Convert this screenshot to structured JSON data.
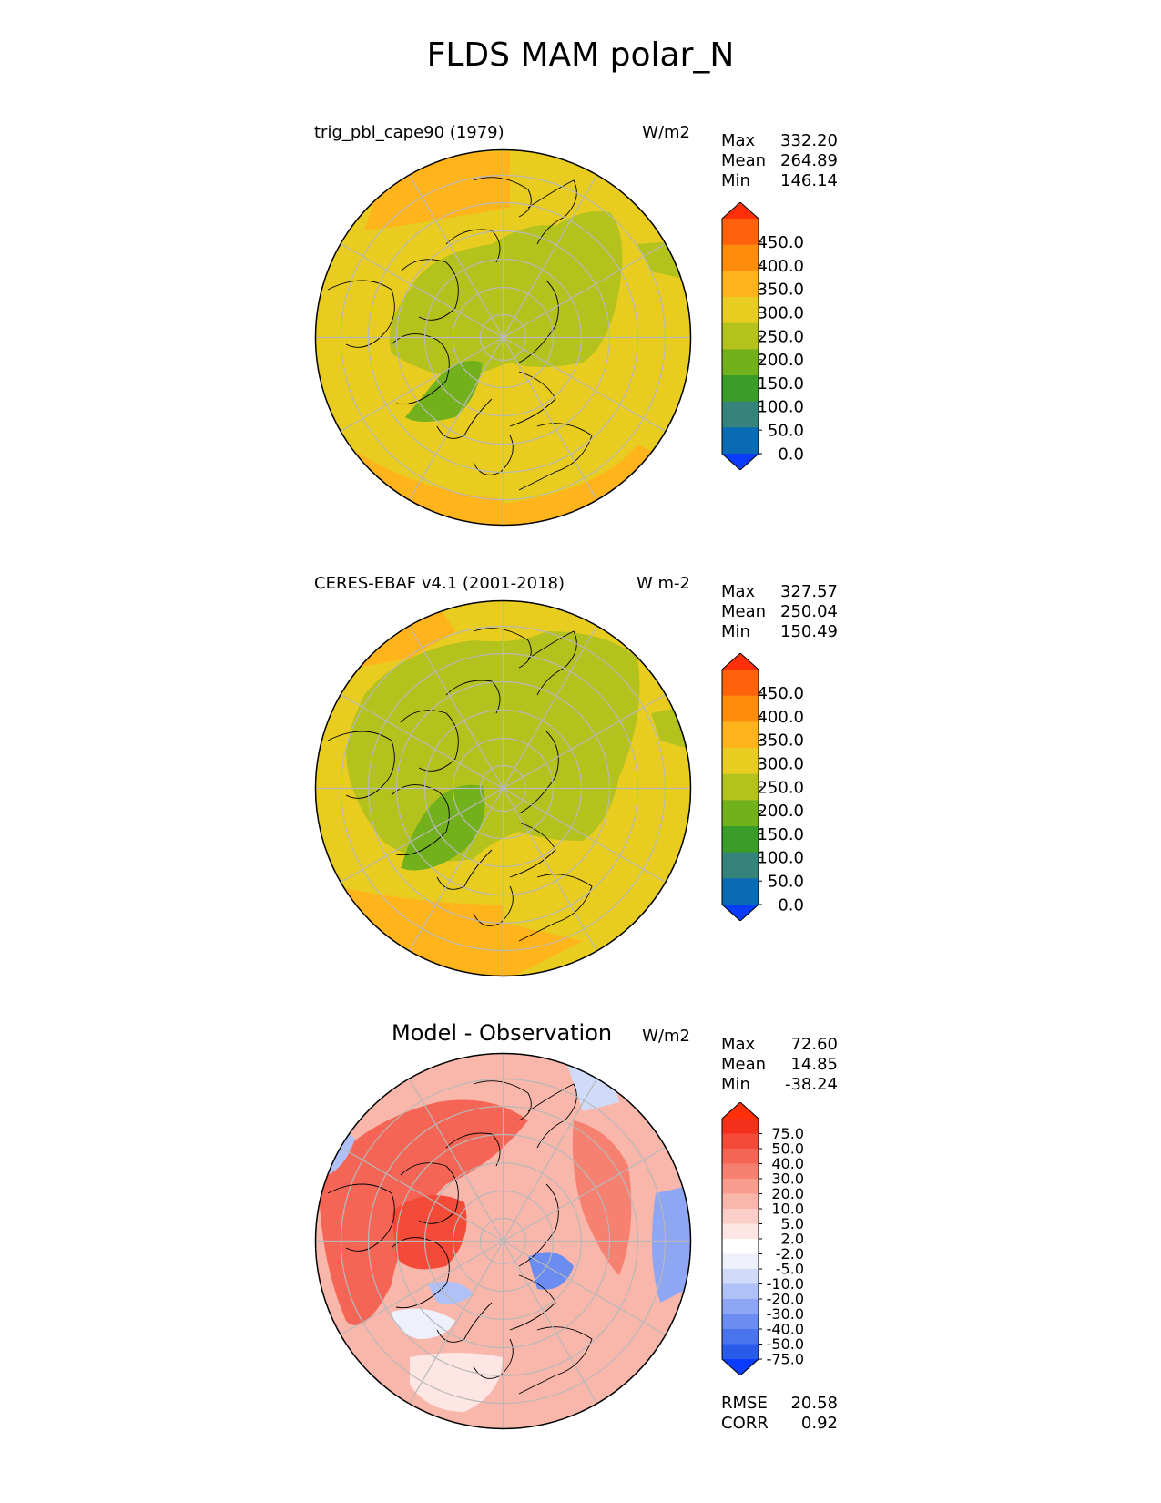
{
  "figure": {
    "title": "FLDS MAM polar_N"
  },
  "colors": {
    "abs_scale": [
      "#0a3cff",
      "#0a6bb5",
      "#35837a",
      "#3a9d2a",
      "#72b01c",
      "#b3c21d",
      "#e8cd20",
      "#ffb41c",
      "#ff8c0a",
      "#ff620a",
      "#ff2f0a"
    ],
    "diff_scale": [
      "#0a3cff",
      "#2a5ae8",
      "#4a73ee",
      "#6b8cf0",
      "#8ea6f3",
      "#afc1f6",
      "#d0dbf9",
      "#eef1fc",
      "#ffffff",
      "#fde6e3",
      "#fbcfc7",
      "#f9b6ab",
      "#f89c8f",
      "#f68171",
      "#f56555",
      "#f44a38",
      "#f2301c",
      "#ff2f0a"
    ],
    "land_line": "#000000",
    "gridline": "#b8b8b8"
  },
  "panels": {
    "model": {
      "title": "trig_pbl_cape90 (1979)",
      "units": "W/m2",
      "stats": [
        {
          "label": "Max",
          "value": "332.20"
        },
        {
          "label": "Mean",
          "value": "264.89"
        },
        {
          "label": "Min",
          "value": "146.14"
        }
      ],
      "colorbar_ticks": [
        "450.0",
        "400.0",
        "350.0",
        "300.0",
        "250.0",
        "200.0",
        "150.0",
        "100.0",
        "50.0",
        "0.0"
      ]
    },
    "obs": {
      "title": "CERES-EBAF v4.1 (2001-2018)",
      "units": "W m-2",
      "stats": [
        {
          "label": "Max",
          "value": "327.57"
        },
        {
          "label": "Mean",
          "value": "250.04"
        },
        {
          "label": "Min",
          "value": "150.49"
        }
      ],
      "colorbar_ticks": [
        "450.0",
        "400.0",
        "350.0",
        "300.0",
        "250.0",
        "200.0",
        "150.0",
        "100.0",
        "50.0",
        "0.0"
      ]
    },
    "diff": {
      "title": "Model - Observation",
      "units": "W/m2",
      "stats": [
        {
          "label": "Max",
          "value": "72.60"
        },
        {
          "label": "Mean",
          "value": "14.85"
        },
        {
          "label": "Min",
          "value": "-38.24"
        }
      ],
      "colorbar_ticks": [
        "75.0",
        "50.0",
        "40.0",
        "30.0",
        "20.0",
        "10.0",
        "5.0",
        "2.0",
        "-2.0",
        "-5.0",
        "-10.0",
        "-20.0",
        "-30.0",
        "-40.0",
        "-50.0",
        "-75.0"
      ],
      "metrics": [
        {
          "label": "RMSE",
          "value": "20.58"
        },
        {
          "label": "CORR",
          "value": "0.92"
        }
      ]
    }
  },
  "chart_data": [
    {
      "type": "heatmap",
      "projection": "north polar stereographic",
      "title": "trig_pbl_cape90 (1979)",
      "units": "W/m2",
      "colorbar_levels": [
        0,
        50,
        100,
        150,
        200,
        250,
        300,
        350,
        400,
        450
      ],
      "max": 332.2,
      "mean": 264.89,
      "min": 146.14
    },
    {
      "type": "heatmap",
      "projection": "north polar stereographic",
      "title": "CERES-EBAF v4.1 (2001-2018)",
      "units": "W m-2",
      "colorbar_levels": [
        0,
        50,
        100,
        150,
        200,
        250,
        300,
        350,
        400,
        450
      ],
      "max": 327.57,
      "mean": 250.04,
      "min": 150.49
    },
    {
      "type": "heatmap",
      "projection": "north polar stereographic",
      "title": "Model - Observation",
      "units": "W/m2",
      "colorbar_levels": [
        -75,
        -50,
        -40,
        -30,
        -20,
        -10,
        -5,
        -2,
        2,
        5,
        10,
        20,
        30,
        40,
        50,
        75
      ],
      "max": 72.6,
      "mean": 14.85,
      "min": -38.24,
      "rmse": 20.58,
      "corr": 0.92
    }
  ]
}
